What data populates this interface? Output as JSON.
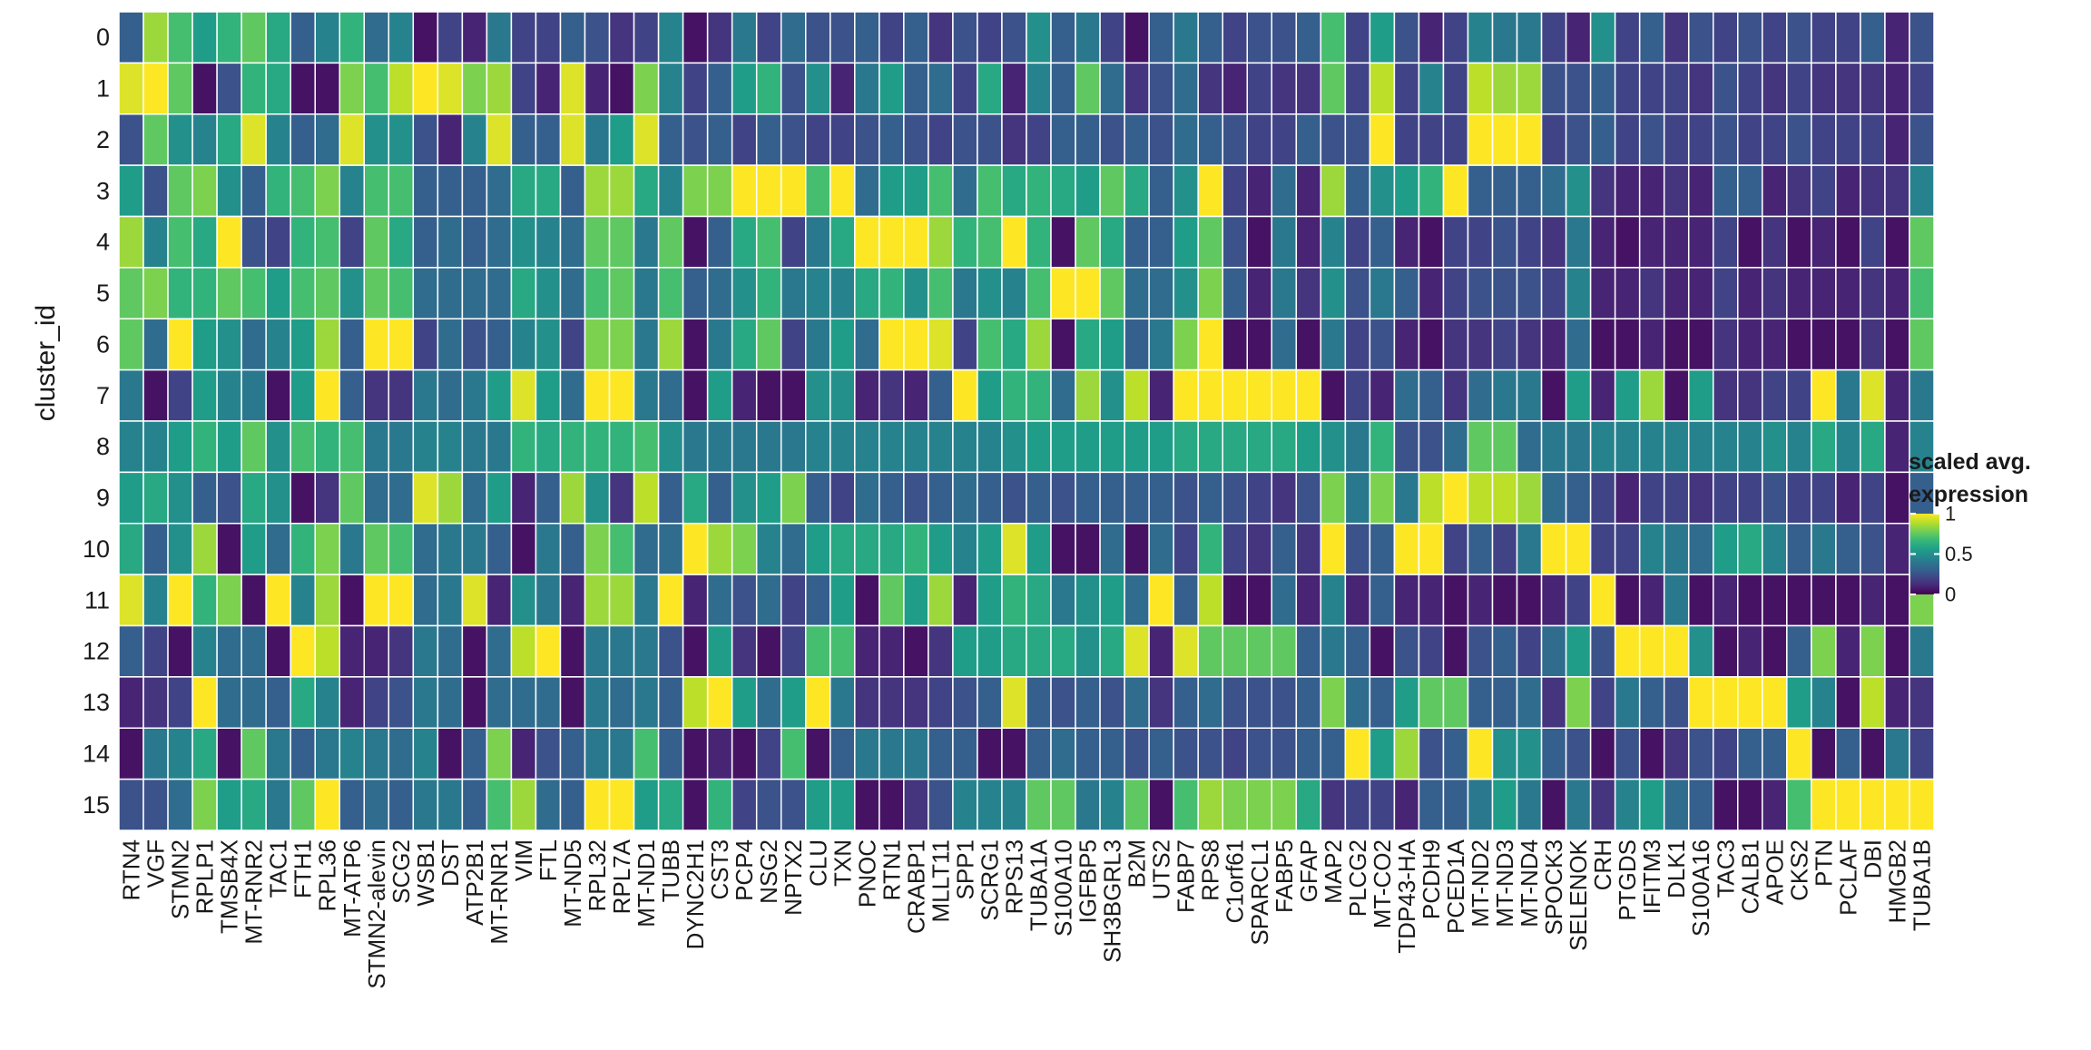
{
  "chart_data": {
    "type": "heatmap",
    "ylabel": "cluster_id",
    "xlabel": "",
    "clusters": [
      "0",
      "1",
      "2",
      "3",
      "4",
      "5",
      "6",
      "7",
      "8",
      "9",
      "10",
      "11",
      "12",
      "13",
      "14",
      "15"
    ],
    "genes": [
      "RTN4",
      "VGF",
      "STMN2",
      "RPLP1",
      "TMSB4X",
      "MT-RNR2",
      "TAC1",
      "FTH1",
      "RPL36",
      "MT-ATP6",
      "STMN2-alevin",
      "SCG2",
      "WSB1",
      "DST",
      "ATP2B1",
      "MT-RNR1",
      "VIM",
      "FTL",
      "MT-ND5",
      "RPL32",
      "RPL7A",
      "MT-ND1",
      "TUBB",
      "DYNC2H1",
      "CST3",
      "PCP4",
      "NSG2",
      "NPTX2",
      "CLU",
      "TXN",
      "PNOC",
      "RTN1",
      "CRABP1",
      "MLLT11",
      "SPP1",
      "SCRG1",
      "RPS13",
      "TUBA1A",
      "S100A10",
      "IGFBP5",
      "SH3BGRL3",
      "B2M",
      "UTS2",
      "FABP7",
      "RPS8",
      "C1orf61",
      "SPARCL1",
      "FABP5",
      "GFAP",
      "MAP2",
      "PLCG2",
      "MT-CO2",
      "TDP43-HA",
      "PCDH9",
      "PCED1A",
      "MT-ND2",
      "MT-ND3",
      "MT-ND4",
      "SPOCK3",
      "SELENOK",
      "CRH",
      "PTGDS",
      "IFITM3",
      "DLK1",
      "S100A16",
      "TAC3",
      "CALB1",
      "APOE",
      "CKS2",
      "PTN",
      "PCLAF",
      "DBI",
      "HMGB2",
      "TUBA1B"
    ],
    "legend": {
      "title_line1": "scaled avg.",
      "title_line2": "expression",
      "ticks": [
        "1",
        "0.5",
        "0"
      ],
      "tick_values": [
        1,
        0.5,
        0
      ]
    },
    "colormap": {
      "name": "viridis",
      "stops": [
        "#440154",
        "#482878",
        "#3e4a89",
        "#31688e",
        "#26828e",
        "#1f9e89",
        "#35b779",
        "#6ece58",
        "#b5de2b",
        "#fde725"
      ]
    },
    "values": [
      [
        0.3,
        0.85,
        0.7,
        0.55,
        0.65,
        0.75,
        0.6,
        0.3,
        0.45,
        0.65,
        0.35,
        0.45,
        0.05,
        0.2,
        0.1,
        0.4,
        0.2,
        0.2,
        0.3,
        0.25,
        0.15,
        0.2,
        0.45,
        0.05,
        0.15,
        0.4,
        0.2,
        0.35,
        0.25,
        0.25,
        0.3,
        0.2,
        0.3,
        0.15,
        0.25,
        0.2,
        0.25,
        0.5,
        0.3,
        0.4,
        0.2,
        0.05,
        0.3,
        0.4,
        0.3,
        0.2,
        0.25,
        0.25,
        0.3,
        0.7,
        0.2,
        0.55,
        0.25,
        0.1,
        0.2,
        0.45,
        0.4,
        0.4,
        0.2,
        0.1,
        0.5,
        0.2,
        0.3,
        0.15,
        0.25,
        0.2,
        0.25,
        0.2,
        0.25,
        0.2,
        0.2,
        0.3,
        0.1,
        0.25
      ],
      [
        0.95,
        1.0,
        0.75,
        0.05,
        0.25,
        0.65,
        0.6,
        0.05,
        0.05,
        0.8,
        0.7,
        0.9,
        1.0,
        0.95,
        0.8,
        0.85,
        0.2,
        0.1,
        0.95,
        0.1,
        0.05,
        0.8,
        0.45,
        0.2,
        0.3,
        0.55,
        0.65,
        0.25,
        0.5,
        0.1,
        0.4,
        0.55,
        0.3,
        0.35,
        0.2,
        0.6,
        0.1,
        0.45,
        0.3,
        0.75,
        0.35,
        0.15,
        0.25,
        0.35,
        0.15,
        0.1,
        0.2,
        0.15,
        0.15,
        0.75,
        0.2,
        0.9,
        0.2,
        0.45,
        0.2,
        0.9,
        0.85,
        0.85,
        0.25,
        0.25,
        0.3,
        0.2,
        0.2,
        0.2,
        0.15,
        0.25,
        0.2,
        0.15,
        0.2,
        0.15,
        0.15,
        0.15,
        0.1,
        0.2
      ],
      [
        0.25,
        0.75,
        0.5,
        0.45,
        0.6,
        0.95,
        0.45,
        0.3,
        0.35,
        0.95,
        0.5,
        0.5,
        0.25,
        0.1,
        0.45,
        0.95,
        0.3,
        0.3,
        0.95,
        0.4,
        0.55,
        0.95,
        0.3,
        0.25,
        0.3,
        0.2,
        0.3,
        0.25,
        0.2,
        0.2,
        0.25,
        0.3,
        0.25,
        0.2,
        0.25,
        0.25,
        0.15,
        0.2,
        0.3,
        0.3,
        0.25,
        0.3,
        0.25,
        0.35,
        0.3,
        0.25,
        0.2,
        0.2,
        0.3,
        0.25,
        0.25,
        1.0,
        0.2,
        0.2,
        0.2,
        1.0,
        1.0,
        1.0,
        0.2,
        0.25,
        0.3,
        0.2,
        0.25,
        0.2,
        0.2,
        0.25,
        0.2,
        0.2,
        0.25,
        0.2,
        0.2,
        0.2,
        0.1,
        0.25
      ],
      [
        0.55,
        0.25,
        0.75,
        0.8,
        0.5,
        0.3,
        0.65,
        0.7,
        0.8,
        0.45,
        0.7,
        0.7,
        0.3,
        0.3,
        0.3,
        0.35,
        0.6,
        0.6,
        0.3,
        0.85,
        0.85,
        0.6,
        0.45,
        0.8,
        0.8,
        1.0,
        1.0,
        1.0,
        0.7,
        1.0,
        0.35,
        0.55,
        0.55,
        0.7,
        0.35,
        0.7,
        0.6,
        0.65,
        0.6,
        0.55,
        0.75,
        0.6,
        0.3,
        0.5,
        1.0,
        0.2,
        0.1,
        0.35,
        0.1,
        0.85,
        0.3,
        0.5,
        0.55,
        0.65,
        1.0,
        0.3,
        0.3,
        0.3,
        0.35,
        0.5,
        0.15,
        0.1,
        0.1,
        0.15,
        0.1,
        0.3,
        0.3,
        0.1,
        0.15,
        0.2,
        0.1,
        0.15,
        0.15,
        0.45
      ],
      [
        0.85,
        0.45,
        0.7,
        0.6,
        1.0,
        0.25,
        0.2,
        0.65,
        0.7,
        0.2,
        0.75,
        0.6,
        0.3,
        0.35,
        0.3,
        0.35,
        0.5,
        0.45,
        0.35,
        0.75,
        0.75,
        0.4,
        0.75,
        0.05,
        0.3,
        0.6,
        0.7,
        0.2,
        0.4,
        0.6,
        1.0,
        1.0,
        1.0,
        0.85,
        0.65,
        0.7,
        1.0,
        0.65,
        0.05,
        0.75,
        0.6,
        0.3,
        0.3,
        0.55,
        0.75,
        0.25,
        0.05,
        0.4,
        0.1,
        0.45,
        0.2,
        0.3,
        0.1,
        0.05,
        0.2,
        0.2,
        0.25,
        0.2,
        0.15,
        0.4,
        0.1,
        0.05,
        0.1,
        0.1,
        0.1,
        0.2,
        0.05,
        0.15,
        0.05,
        0.1,
        0.05,
        0.2,
        0.05,
        0.75
      ],
      [
        0.75,
        0.8,
        0.65,
        0.65,
        0.75,
        0.7,
        0.55,
        0.7,
        0.75,
        0.5,
        0.75,
        0.7,
        0.35,
        0.35,
        0.35,
        0.35,
        0.6,
        0.5,
        0.35,
        0.7,
        0.75,
        0.4,
        0.7,
        0.3,
        0.35,
        0.5,
        0.65,
        0.4,
        0.45,
        0.45,
        0.6,
        0.65,
        0.5,
        0.7,
        0.4,
        0.5,
        0.45,
        0.7,
        1.0,
        1.0,
        0.75,
        0.35,
        0.35,
        0.5,
        0.8,
        0.3,
        0.1,
        0.4,
        0.15,
        0.5,
        0.25,
        0.4,
        0.3,
        0.1,
        0.2,
        0.25,
        0.25,
        0.25,
        0.2,
        0.45,
        0.1,
        0.1,
        0.15,
        0.1,
        0.1,
        0.2,
        0.1,
        0.15,
        0.1,
        0.1,
        0.1,
        0.15,
        0.1,
        0.7
      ],
      [
        0.75,
        0.35,
        1.0,
        0.55,
        0.5,
        0.35,
        0.45,
        0.55,
        0.85,
        0.3,
        1.0,
        1.0,
        0.2,
        0.35,
        0.25,
        0.3,
        0.45,
        0.5,
        0.2,
        0.8,
        0.8,
        0.4,
        0.85,
        0.05,
        0.4,
        0.6,
        0.75,
        0.2,
        0.4,
        0.55,
        0.35,
        1.0,
        1.0,
        0.95,
        0.2,
        0.7,
        0.6,
        0.85,
        0.05,
        0.6,
        0.55,
        0.3,
        0.4,
        0.8,
        1.0,
        0.05,
        0.05,
        0.35,
        0.05,
        0.4,
        0.2,
        0.25,
        0.1,
        0.05,
        0.15,
        0.15,
        0.2,
        0.15,
        0.1,
        0.35,
        0.05,
        0.05,
        0.1,
        0.05,
        0.05,
        0.15,
        0.1,
        0.1,
        0.05,
        0.05,
        0.05,
        0.15,
        0.05,
        0.75
      ],
      [
        0.4,
        0.05,
        0.2,
        0.55,
        0.45,
        0.4,
        0.05,
        0.55,
        1.0,
        0.3,
        0.15,
        0.15,
        0.4,
        0.35,
        0.4,
        0.55,
        0.95,
        0.55,
        0.35,
        1.0,
        1.0,
        0.4,
        0.35,
        0.05,
        0.55,
        0.1,
        0.05,
        0.05,
        0.5,
        0.5,
        0.1,
        0.15,
        0.1,
        0.3,
        1.0,
        0.55,
        0.65,
        0.65,
        0.35,
        0.85,
        0.5,
        0.9,
        0.1,
        1.0,
        1.0,
        1.0,
        1.0,
        1.0,
        1.0,
        0.05,
        0.2,
        0.1,
        0.35,
        0.3,
        0.15,
        0.35,
        0.4,
        0.4,
        0.05,
        0.55,
        0.1,
        0.55,
        0.85,
        0.05,
        0.55,
        0.15,
        0.15,
        0.2,
        0.2,
        1.0,
        0.4,
        0.95,
        0.1,
        0.4
      ],
      [
        0.45,
        0.45,
        0.55,
        0.65,
        0.55,
        0.75,
        0.5,
        0.7,
        0.65,
        0.7,
        0.4,
        0.4,
        0.45,
        0.45,
        0.4,
        0.4,
        0.65,
        0.6,
        0.65,
        0.65,
        0.65,
        0.7,
        0.5,
        0.4,
        0.4,
        0.4,
        0.4,
        0.4,
        0.45,
        0.45,
        0.45,
        0.45,
        0.45,
        0.45,
        0.45,
        0.45,
        0.5,
        0.55,
        0.55,
        0.55,
        0.55,
        0.55,
        0.55,
        0.6,
        0.6,
        0.6,
        0.6,
        0.6,
        0.55,
        0.5,
        0.4,
        0.65,
        0.25,
        0.25,
        0.35,
        0.75,
        0.75,
        0.35,
        0.4,
        0.4,
        0.45,
        0.45,
        0.45,
        0.45,
        0.45,
        0.45,
        0.45,
        0.5,
        0.45,
        0.6,
        0.45,
        0.6,
        0.1,
        0.45
      ],
      [
        0.55,
        0.6,
        0.5,
        0.3,
        0.25,
        0.6,
        0.5,
        0.05,
        0.15,
        0.75,
        0.35,
        0.35,
        0.95,
        0.85,
        0.35,
        0.55,
        0.1,
        0.3,
        0.85,
        0.5,
        0.15,
        0.9,
        0.3,
        0.6,
        0.3,
        0.5,
        0.55,
        0.8,
        0.3,
        0.2,
        0.35,
        0.3,
        0.25,
        0.3,
        0.35,
        0.3,
        0.25,
        0.3,
        0.25,
        0.3,
        0.3,
        0.3,
        0.3,
        0.25,
        0.3,
        0.25,
        0.2,
        0.15,
        0.25,
        0.8,
        0.4,
        0.8,
        0.4,
        0.9,
        1.0,
        0.9,
        0.9,
        0.85,
        0.35,
        0.3,
        0.2,
        0.1,
        0.2,
        0.2,
        0.15,
        0.2,
        0.2,
        0.25,
        0.2,
        0.2,
        0.1,
        0.2,
        0.05,
        0.3
      ],
      [
        0.6,
        0.3,
        0.5,
        0.85,
        0.05,
        0.55,
        0.35,
        0.65,
        0.8,
        0.4,
        0.75,
        0.7,
        0.35,
        0.4,
        0.4,
        0.3,
        0.05,
        0.4,
        0.3,
        0.8,
        0.7,
        0.35,
        0.35,
        1.0,
        0.85,
        0.8,
        0.45,
        0.35,
        0.55,
        0.6,
        0.6,
        0.6,
        0.65,
        0.55,
        0.45,
        0.55,
        0.95,
        0.55,
        0.05,
        0.05,
        0.35,
        0.05,
        0.35,
        0.2,
        0.65,
        0.2,
        0.15,
        0.3,
        0.15,
        1.0,
        0.25,
        0.3,
        1.0,
        1.0,
        0.2,
        0.3,
        0.2,
        0.4,
        1.0,
        1.0,
        0.2,
        0.2,
        0.45,
        0.4,
        0.35,
        0.55,
        0.6,
        0.45,
        0.3,
        0.4,
        0.3,
        0.25,
        0.1,
        0.4
      ],
      [
        0.95,
        0.45,
        1.0,
        0.65,
        0.8,
        0.05,
        1.0,
        0.45,
        0.85,
        0.05,
        1.0,
        1.0,
        0.35,
        0.4,
        0.95,
        0.1,
        0.5,
        0.4,
        0.1,
        0.85,
        0.85,
        0.4,
        1.0,
        0.1,
        0.35,
        0.25,
        0.35,
        0.2,
        0.3,
        0.55,
        0.05,
        0.75,
        0.55,
        0.85,
        0.1,
        0.55,
        0.65,
        0.6,
        0.4,
        0.5,
        0.55,
        0.35,
        1.0,
        0.3,
        0.9,
        0.05,
        0.05,
        0.35,
        0.1,
        0.45,
        0.1,
        0.3,
        0.1,
        0.1,
        0.05,
        0.1,
        0.05,
        0.05,
        0.1,
        0.2,
        1.0,
        0.05,
        0.1,
        0.4,
        0.05,
        0.1,
        0.05,
        0.05,
        0.05,
        0.05,
        0.05,
        0.1,
        0.05,
        0.8
      ],
      [
        0.3,
        0.2,
        0.05,
        0.45,
        0.35,
        0.35,
        0.05,
        1.0,
        0.9,
        0.1,
        0.1,
        0.15,
        0.4,
        0.35,
        0.05,
        0.35,
        0.9,
        1.0,
        0.05,
        0.4,
        0.4,
        0.4,
        0.25,
        0.05,
        0.55,
        0.15,
        0.05,
        0.2,
        0.7,
        0.7,
        0.1,
        0.1,
        0.05,
        0.15,
        0.55,
        0.55,
        0.6,
        0.6,
        0.6,
        0.5,
        0.6,
        0.95,
        0.1,
        0.95,
        0.75,
        0.75,
        0.75,
        0.75,
        0.3,
        0.4,
        0.3,
        0.05,
        0.25,
        0.2,
        0.05,
        0.25,
        0.3,
        0.2,
        0.35,
        0.55,
        0.25,
        1.0,
        1.0,
        1.0,
        0.5,
        0.05,
        0.1,
        0.05,
        0.3,
        0.8,
        0.1,
        0.8,
        0.05,
        0.4
      ],
      [
        0.1,
        0.15,
        0.2,
        1.0,
        0.35,
        0.35,
        0.3,
        0.6,
        0.45,
        0.1,
        0.2,
        0.25,
        0.4,
        0.35,
        0.05,
        0.35,
        0.35,
        0.35,
        0.05,
        0.4,
        0.35,
        0.4,
        0.3,
        0.9,
        1.0,
        0.55,
        0.35,
        0.55,
        1.0,
        0.4,
        0.15,
        0.15,
        0.15,
        0.2,
        0.25,
        0.3,
        0.95,
        0.3,
        0.25,
        0.3,
        0.25,
        0.35,
        0.15,
        0.3,
        0.35,
        0.25,
        0.25,
        0.25,
        0.3,
        0.8,
        0.35,
        0.3,
        0.55,
        0.75,
        0.75,
        0.3,
        0.3,
        0.35,
        0.15,
        0.8,
        0.2,
        0.4,
        0.3,
        0.25,
        1.0,
        1.0,
        1.0,
        1.0,
        0.55,
        0.45,
        0.05,
        0.9,
        0.1,
        0.15
      ],
      [
        0.05,
        0.4,
        0.45,
        0.6,
        0.05,
        0.75,
        0.4,
        0.3,
        0.4,
        0.45,
        0.4,
        0.35,
        0.45,
        0.05,
        0.3,
        0.8,
        0.1,
        0.25,
        0.3,
        0.4,
        0.4,
        0.7,
        0.3,
        0.05,
        0.1,
        0.05,
        0.2,
        0.7,
        0.05,
        0.3,
        0.4,
        0.4,
        0.4,
        0.3,
        0.3,
        0.05,
        0.05,
        0.3,
        0.35,
        0.3,
        0.3,
        0.25,
        0.3,
        0.25,
        0.25,
        0.2,
        0.25,
        0.25,
        0.3,
        0.3,
        1.0,
        0.55,
        0.85,
        0.25,
        0.3,
        1.0,
        0.5,
        0.5,
        0.3,
        0.25,
        0.05,
        0.25,
        0.05,
        0.15,
        0.25,
        0.2,
        0.3,
        0.3,
        1.0,
        0.05,
        0.3,
        0.05,
        0.4,
        0.2
      ],
      [
        0.25,
        0.25,
        0.35,
        0.8,
        0.55,
        0.6,
        0.4,
        0.75,
        1.0,
        0.3,
        0.35,
        0.3,
        0.4,
        0.4,
        0.3,
        0.7,
        0.85,
        0.35,
        0.3,
        1.0,
        1.0,
        0.55,
        0.6,
        0.05,
        0.65,
        0.2,
        0.25,
        0.25,
        0.55,
        0.55,
        0.05,
        0.05,
        0.15,
        0.25,
        0.45,
        0.45,
        0.45,
        0.75,
        0.75,
        0.4,
        0.45,
        0.75,
        0.05,
        0.7,
        0.85,
        0.8,
        0.8,
        0.8,
        0.6,
        0.15,
        0.2,
        0.2,
        0.1,
        0.3,
        0.3,
        0.4,
        0.55,
        0.4,
        0.05,
        0.4,
        0.15,
        0.45,
        0.55,
        0.35,
        0.3,
        0.05,
        0.05,
        0.1,
        0.7,
        1.0,
        1.0,
        1.0,
        1.0,
        1.0
      ]
    ]
  }
}
